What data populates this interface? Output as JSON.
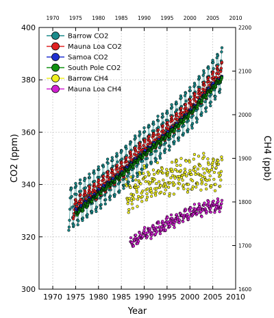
{
  "chart_data": {
    "type": "scatter",
    "xlabel": "Year",
    "ylabel_left": "CO2 (ppm)",
    "ylabel_right": "CH4 (ppb)",
    "xlim": [
      1967,
      2010
    ],
    "ylim_left": [
      300,
      400
    ],
    "ylim_right": [
      1600,
      2200
    ],
    "x_ticks": [
      1970,
      1975,
      1980,
      1985,
      1990,
      1995,
      2000,
      2005,
      2010
    ],
    "y_ticks_left": [
      300,
      320,
      340,
      360,
      380,
      400
    ],
    "y_ticks_right": [
      1600,
      1700,
      1800,
      1900,
      2000,
      2100,
      2200
    ],
    "grid": true,
    "legend_position": "top-left",
    "series": [
      {
        "name": "Barrow CO2",
        "axis": "left",
        "color": "#1a8a8a",
        "x_range": [
          1973.5,
          2007.0
        ],
        "trend": [
          [
            1973.5,
            330.5
          ],
          [
            1980,
            338.5
          ],
          [
            1985,
            345.5
          ],
          [
            1990,
            353.5
          ],
          [
            1995,
            360.5
          ],
          [
            2000,
            369.0
          ],
          [
            2005,
            379.5
          ],
          [
            2007,
            384.0
          ]
        ],
        "seasonal_amplitude": 8.0
      },
      {
        "name": "Mauna Loa CO2",
        "axis": "left",
        "color": "#e02020",
        "x_range": [
          1974.5,
          2007.0
        ],
        "trend": [
          [
            1974.5,
            330.5
          ],
          [
            1980,
            338.5
          ],
          [
            1985,
            345.5
          ],
          [
            1990,
            354.0
          ],
          [
            1995,
            360.5
          ],
          [
            2000,
            369.5
          ],
          [
            2005,
            379.5
          ],
          [
            2007,
            383.5
          ]
        ],
        "seasonal_amplitude": 3.2
      },
      {
        "name": "Samoa CO2",
        "axis": "left",
        "color": "#2030d0",
        "x_range": [
          1975.0,
          2007.0
        ],
        "trend": [
          [
            1975,
            329.5
          ],
          [
            1980,
            337.0
          ],
          [
            1985,
            344.0
          ],
          [
            1990,
            352.0
          ],
          [
            1995,
            359.0
          ],
          [
            2000,
            367.5
          ],
          [
            2005,
            377.5
          ],
          [
            2007,
            381.0
          ]
        ],
        "seasonal_amplitude": 0.8
      },
      {
        "name": "South Pole CO2",
        "axis": "left",
        "color": "#109010",
        "x_range": [
          1975.0,
          2007.0
        ],
        "trend": [
          [
            1975,
            328.5
          ],
          [
            1980,
            336.5
          ],
          [
            1985,
            343.5
          ],
          [
            1990,
            351.5
          ],
          [
            1995,
            358.5
          ],
          [
            2000,
            367.0
          ],
          [
            2005,
            377.0
          ],
          [
            2007,
            380.5
          ]
        ],
        "seasonal_amplitude": 0.6
      },
      {
        "name": "Barrow CH4",
        "axis": "right",
        "color": "#f0f020",
        "x_range": [
          1986.0,
          2007.0
        ],
        "trend": [
          [
            1986,
            1810
          ],
          [
            1990,
            1840
          ],
          [
            1995,
            1855
          ],
          [
            2000,
            1865
          ],
          [
            2005,
            1870
          ],
          [
            2007,
            1870
          ]
        ],
        "seasonal_amplitude": 25
      },
      {
        "name": "Mauna Loa CH4",
        "axis": "right",
        "color": "#d020d0",
        "x_range": [
          1987.0,
          2007.0
        ],
        "trend": [
          [
            1987,
            1705
          ],
          [
            1990,
            1725
          ],
          [
            1995,
            1750
          ],
          [
            2000,
            1775
          ],
          [
            2005,
            1790
          ],
          [
            2007,
            1792
          ]
        ],
        "seasonal_amplitude": 10
      }
    ]
  }
}
